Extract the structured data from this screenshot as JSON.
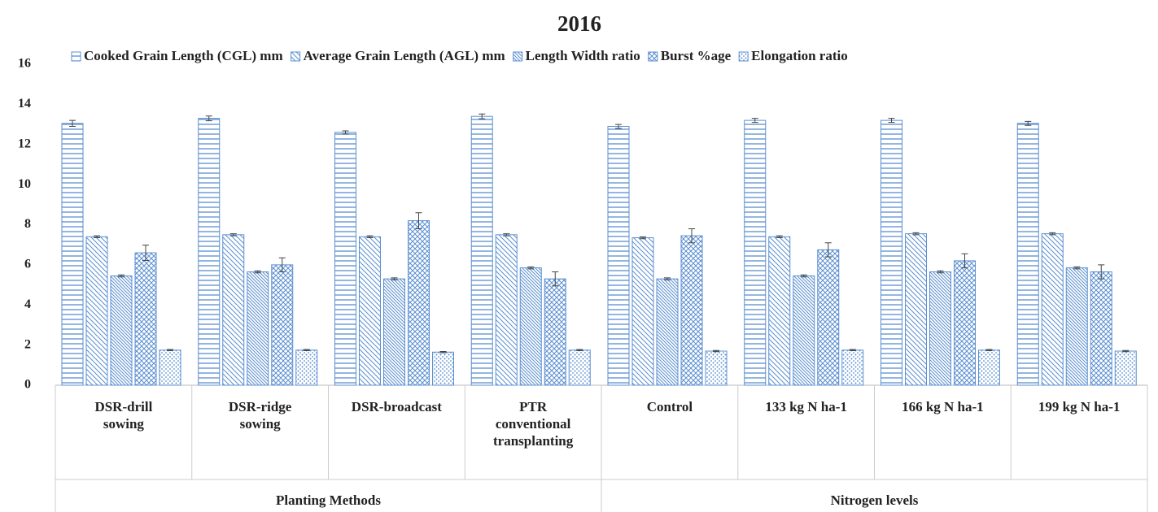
{
  "chart_data": {
    "type": "bar",
    "title": "2016",
    "categories": [
      "DSR-drill sowing",
      "DSR-ridge sowing",
      "DSR-broadcast",
      "PTR conventional transplanting",
      "Control",
      "133 kg N ha-1",
      "166 kg N ha-1",
      "199 kg N ha-1"
    ],
    "groups": [
      "Planting Methods",
      "Nitrogen levels"
    ],
    "series": [
      {
        "name": "Cooked Grain Length (CGL) mm",
        "color": "#5b8fd0",
        "pattern": "horizontal",
        "values": [
          13.05,
          13.3,
          12.6,
          13.4,
          12.9,
          13.2,
          13.2,
          13.05
        ],
        "errors": [
          0.15,
          0.12,
          0.08,
          0.12,
          0.1,
          0.1,
          0.1,
          0.1
        ]
      },
      {
        "name": "Average Grain Length (AGL) mm",
        "color": "#5b8fd0",
        "pattern": "diagonal",
        "values": [
          7.4,
          7.5,
          7.4,
          7.5,
          7.35,
          7.4,
          7.55,
          7.55
        ],
        "errors": [
          0.05,
          0.05,
          0.05,
          0.05,
          0.05,
          0.05,
          0.05,
          0.05
        ]
      },
      {
        "name": "Length Width ratio",
        "color": "#5b8fd0",
        "pattern": "fine-diagonal",
        "values": [
          5.45,
          5.65,
          5.3,
          5.85,
          5.3,
          5.45,
          5.65,
          5.85
        ],
        "errors": [
          0.05,
          0.05,
          0.05,
          0.05,
          0.05,
          0.05,
          0.05,
          0.05
        ]
      },
      {
        "name": "Burst %age",
        "color": "#5b8fd0",
        "pattern": "crosshatch",
        "values": [
          6.6,
          6.0,
          8.2,
          5.3,
          7.45,
          6.75,
          6.2,
          5.65
        ],
        "errors": [
          0.38,
          0.35,
          0.4,
          0.35,
          0.35,
          0.35,
          0.35,
          0.35
        ]
      },
      {
        "name": "Elongation ratio",
        "color": "#5b8fd0",
        "pattern": "dots",
        "values": [
          1.75,
          1.75,
          1.65,
          1.75,
          1.7,
          1.75,
          1.75,
          1.7
        ],
        "errors": [
          0.03,
          0.03,
          0.03,
          0.03,
          0.03,
          0.03,
          0.03,
          0.03
        ]
      }
    ],
    "ylim": [
      0,
      16
    ],
    "yticks": [
      0,
      2,
      4,
      6,
      8,
      10,
      12,
      14,
      16
    ],
    "legend": "top"
  }
}
